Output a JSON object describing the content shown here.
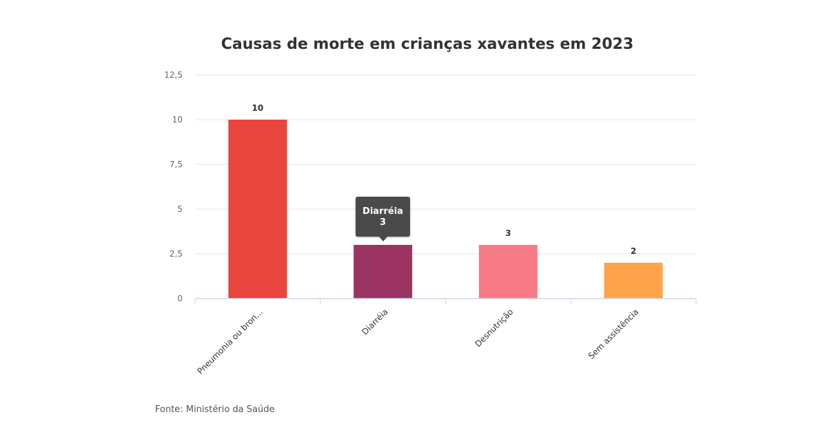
{
  "chart_data": {
    "type": "bar",
    "title": "Causas de morte em crianças xavantes em 2023",
    "categories": [
      "Pneumonia ou bron...",
      "Diarréia",
      "Desnutrição",
      "Sem assistência"
    ],
    "values": [
      10,
      3,
      3,
      2
    ],
    "colors": [
      "#e8453c",
      "#9b3462",
      "#f77b86",
      "#ffa24a"
    ],
    "ylim": [
      0,
      12.5
    ],
    "yticks": [
      "0",
      "2,5",
      "5",
      "7,5",
      "10",
      "12,5"
    ],
    "ytick_values": [
      0,
      2.5,
      5,
      7.5,
      10,
      12.5
    ],
    "grid": true,
    "legend": "none",
    "tooltip": {
      "category": "Diarréia",
      "value": "3"
    }
  },
  "source": "Fonte: Ministério da Saúde"
}
